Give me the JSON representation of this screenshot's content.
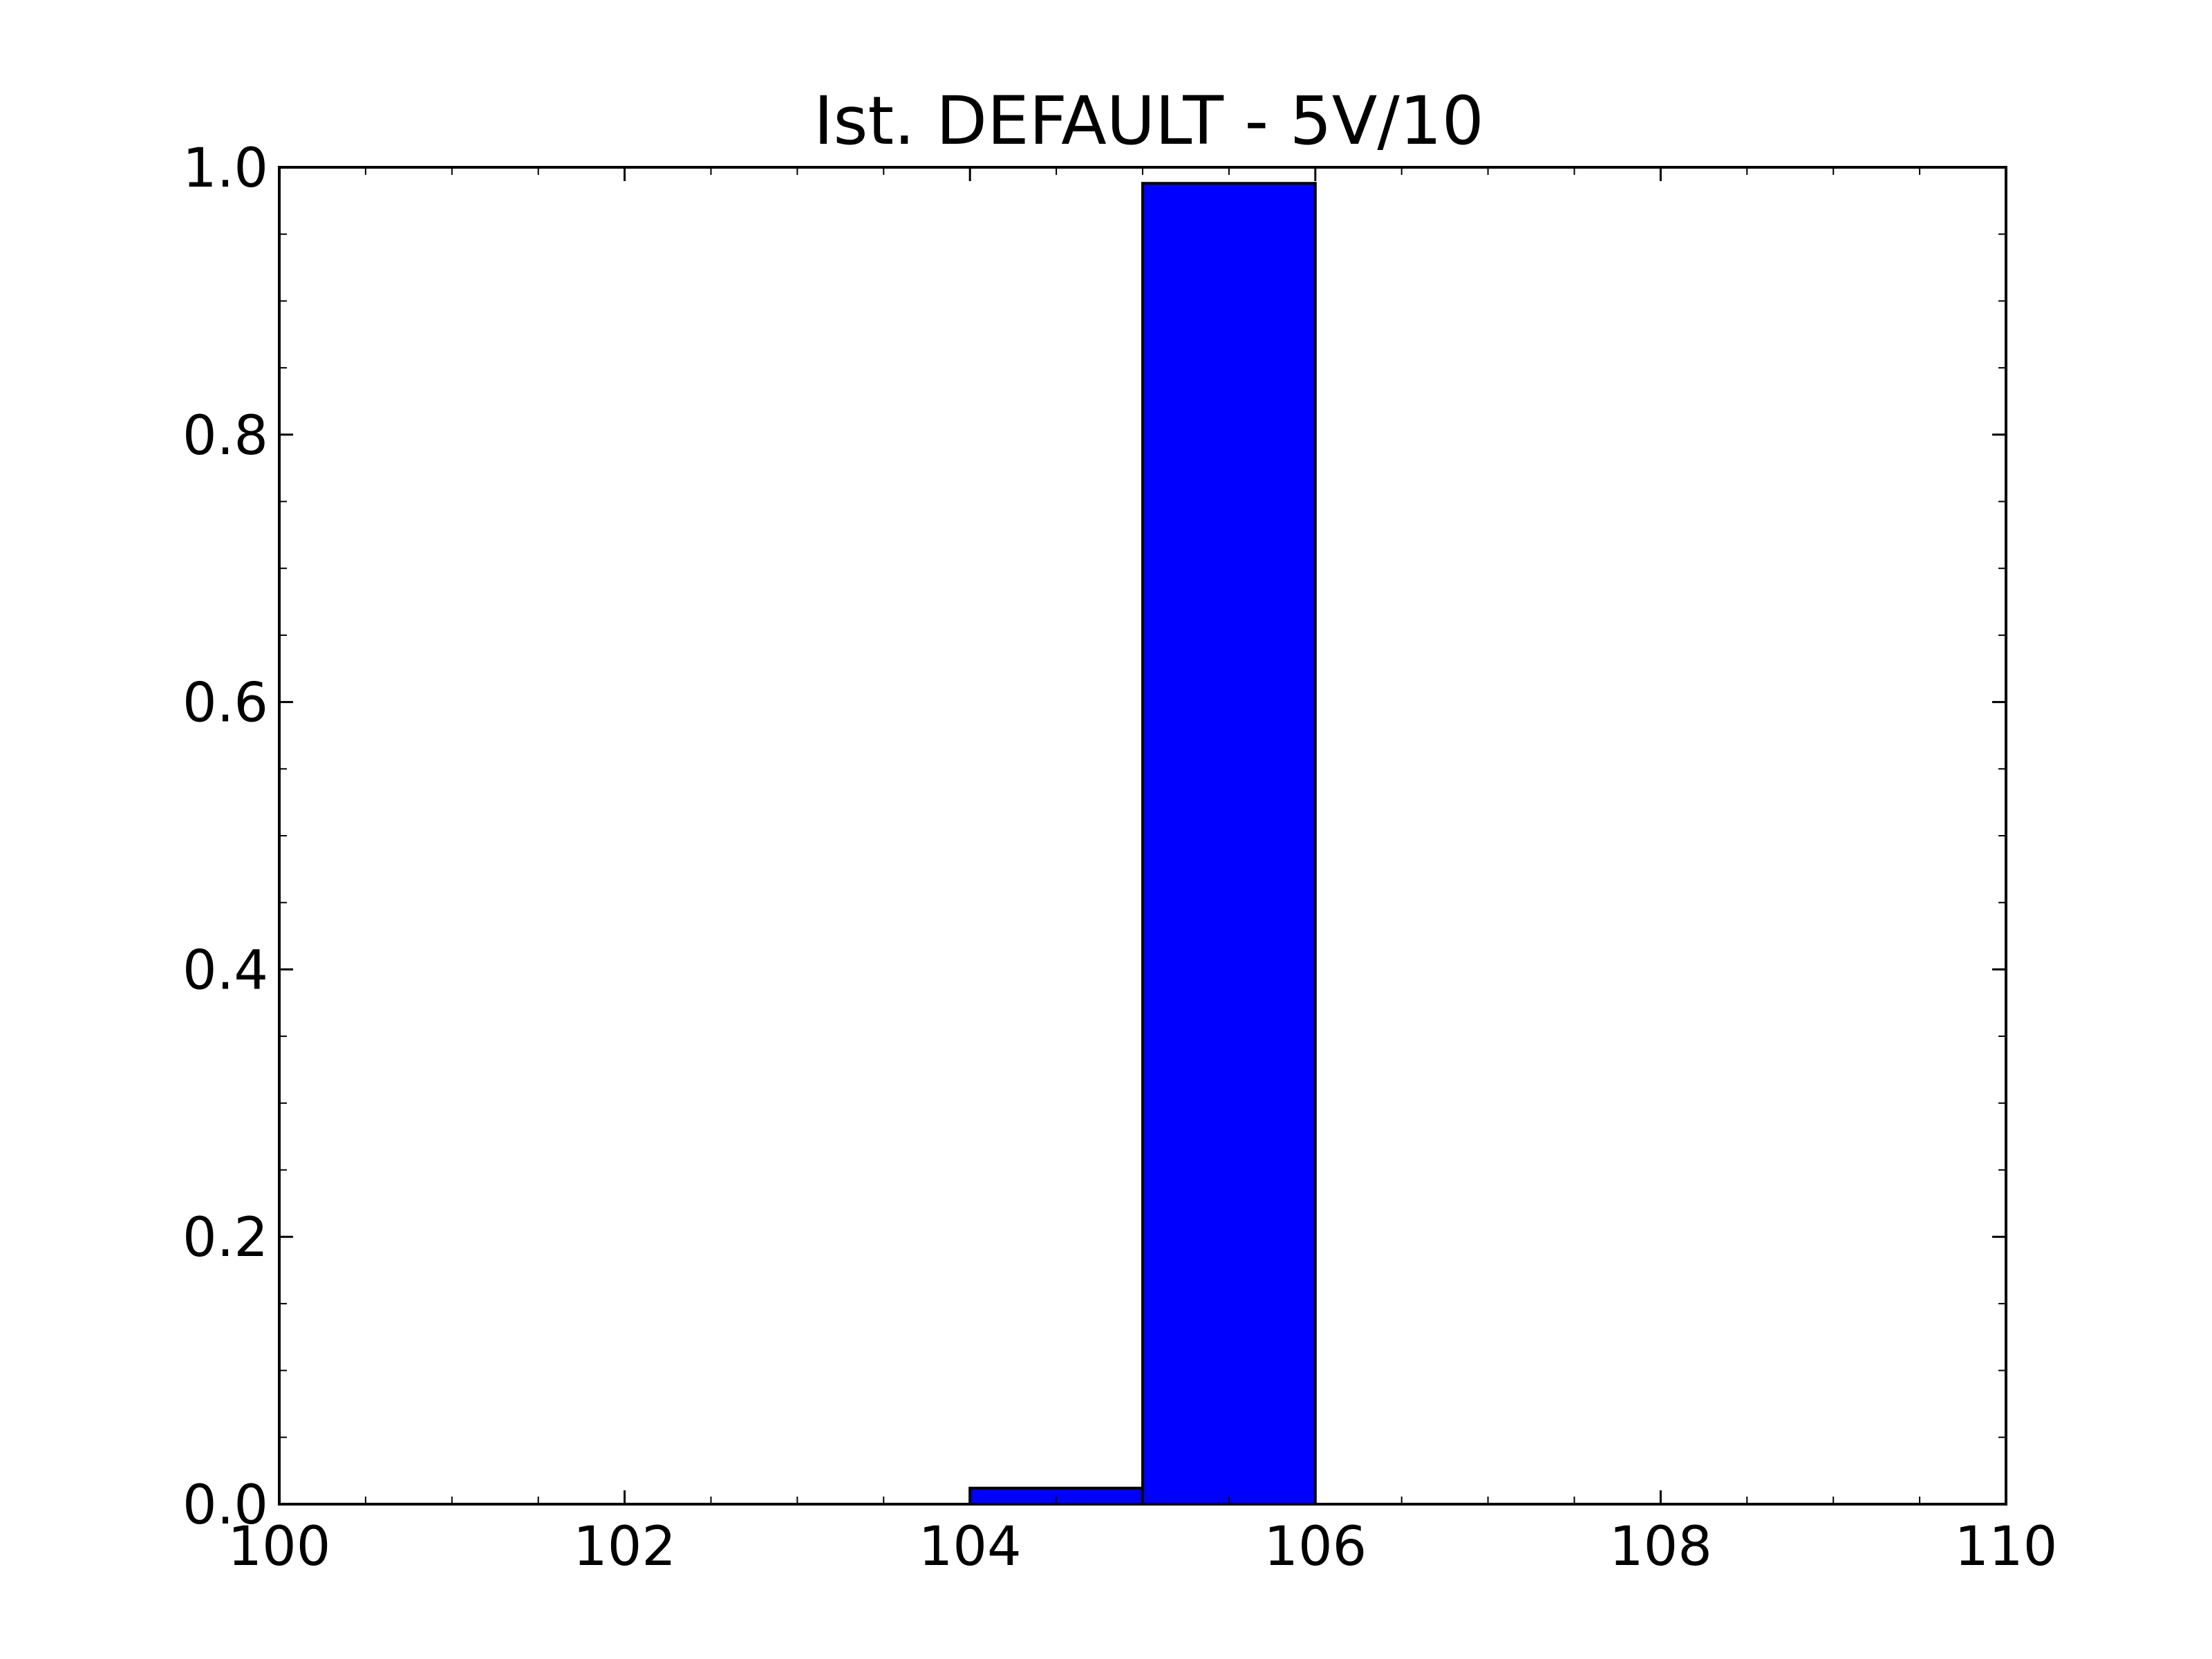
{
  "chart_data": {
    "type": "bar",
    "title": "Ist. DEFAULT - 5V/10",
    "xlabel": "",
    "ylabel": "",
    "xlim": [
      100,
      110
    ],
    "ylim": [
      0,
      1.0
    ],
    "bins": [
      {
        "x_start": 104,
        "x_end": 105,
        "value": 0.012
      },
      {
        "x_start": 105,
        "x_end": 106,
        "value": 0.988
      }
    ],
    "x_ticks": [
      "100",
      "102",
      "104",
      "106",
      "108",
      "110"
    ],
    "y_ticks": [
      "0.0",
      "0.2",
      "0.4",
      "0.6",
      "0.8",
      "1.0"
    ],
    "grid": false,
    "legend": "none",
    "colors": {
      "bar_fill": "#0000ff",
      "bar_edge": "#000000",
      "axes": "#000000",
      "background": "#ffffff"
    }
  }
}
